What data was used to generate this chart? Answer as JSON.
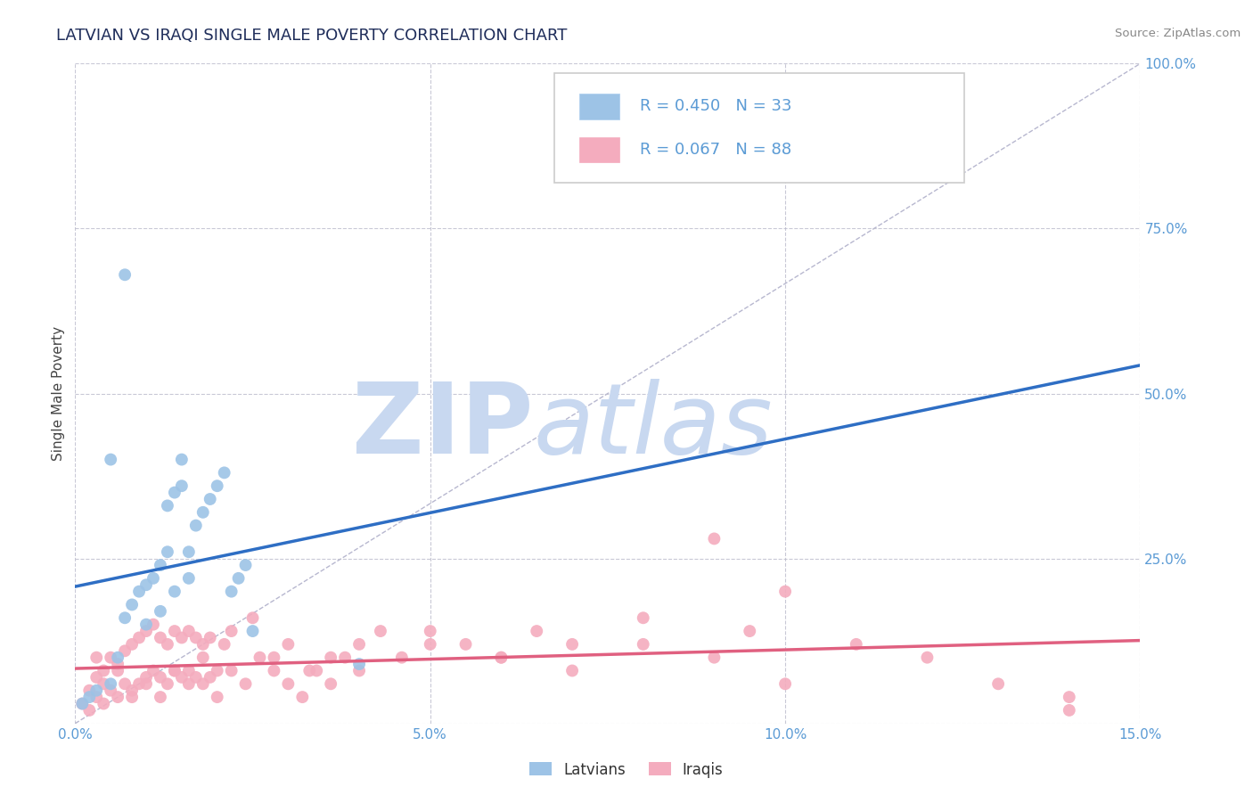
{
  "title": "LATVIAN VS IRAQI SINGLE MALE POVERTY CORRELATION CHART",
  "source_text": "Source: ZipAtlas.com",
  "ylabel": "Single Male Poverty",
  "x_min": 0.0,
  "x_max": 0.15,
  "y_min": 0.0,
  "y_max": 1.0,
  "x_ticks": [
    0.0,
    0.05,
    0.1,
    0.15
  ],
  "x_tick_labels": [
    "0.0%",
    "5.0%",
    "10.0%",
    "15.0%"
  ],
  "y_ticks": [
    0.0,
    0.25,
    0.5,
    0.75,
    1.0
  ],
  "y_tick_labels": [
    "",
    "25.0%",
    "50.0%",
    "75.0%",
    "100.0%"
  ],
  "latvian_color": "#9DC3E6",
  "iraqi_color": "#F4ACBE",
  "latvian_R": 0.45,
  "latvian_N": 33,
  "iraqi_R": 0.067,
  "iraqi_N": 88,
  "latvian_line_color": "#2E6EC4",
  "iraqi_line_color": "#E06080",
  "ref_line_color": "#9999BB",
  "watermark_color": "#C8D8F0",
  "watermark_zip": "ZIP",
  "watermark_atlas": "atlas",
  "title_fontsize": 13,
  "tick_fontsize": 11,
  "legend_fontsize": 13,
  "latvian_x": [
    0.002,
    0.003,
    0.005,
    0.006,
    0.007,
    0.008,
    0.009,
    0.01,
    0.011,
    0.012,
    0.013,
    0.013,
    0.014,
    0.015,
    0.015,
    0.016,
    0.017,
    0.018,
    0.019,
    0.02,
    0.021,
    0.022,
    0.023,
    0.024,
    0.025,
    0.01,
    0.012,
    0.014,
    0.016,
    0.005,
    0.007,
    0.04,
    0.001
  ],
  "latvian_y": [
    0.04,
    0.05,
    0.06,
    0.1,
    0.16,
    0.18,
    0.2,
    0.21,
    0.22,
    0.24,
    0.26,
    0.33,
    0.35,
    0.36,
    0.4,
    0.26,
    0.3,
    0.32,
    0.34,
    0.36,
    0.38,
    0.2,
    0.22,
    0.24,
    0.14,
    0.15,
    0.17,
    0.2,
    0.22,
    0.4,
    0.68,
    0.09,
    0.03
  ],
  "iraqi_x": [
    0.001,
    0.002,
    0.002,
    0.003,
    0.003,
    0.004,
    0.004,
    0.005,
    0.005,
    0.006,
    0.006,
    0.007,
    0.007,
    0.008,
    0.008,
    0.009,
    0.009,
    0.01,
    0.01,
    0.011,
    0.011,
    0.012,
    0.012,
    0.013,
    0.013,
    0.014,
    0.014,
    0.015,
    0.015,
    0.016,
    0.016,
    0.017,
    0.017,
    0.018,
    0.018,
    0.019,
    0.019,
    0.02,
    0.021,
    0.022,
    0.025,
    0.028,
    0.03,
    0.033,
    0.036,
    0.04,
    0.043,
    0.046,
    0.05,
    0.055,
    0.06,
    0.065,
    0.07,
    0.08,
    0.09,
    0.095,
    0.1,
    0.11,
    0.12,
    0.13,
    0.14,
    0.003,
    0.004,
    0.006,
    0.008,
    0.01,
    0.012,
    0.014,
    0.016,
    0.018,
    0.02,
    0.022,
    0.024,
    0.026,
    0.028,
    0.03,
    0.032,
    0.034,
    0.036,
    0.038,
    0.04,
    0.05,
    0.06,
    0.07,
    0.08,
    0.09,
    0.1,
    0.14
  ],
  "iraqi_y": [
    0.03,
    0.02,
    0.05,
    0.04,
    0.07,
    0.03,
    0.08,
    0.05,
    0.1,
    0.04,
    0.09,
    0.06,
    0.11,
    0.05,
    0.12,
    0.06,
    0.13,
    0.07,
    0.14,
    0.08,
    0.15,
    0.07,
    0.13,
    0.06,
    0.12,
    0.08,
    0.14,
    0.07,
    0.13,
    0.08,
    0.14,
    0.07,
    0.13,
    0.06,
    0.12,
    0.07,
    0.13,
    0.08,
    0.12,
    0.14,
    0.16,
    0.1,
    0.12,
    0.08,
    0.1,
    0.12,
    0.14,
    0.1,
    0.14,
    0.12,
    0.1,
    0.14,
    0.12,
    0.16,
    0.28,
    0.14,
    0.2,
    0.12,
    0.1,
    0.06,
    0.02,
    0.1,
    0.06,
    0.08,
    0.04,
    0.06,
    0.04,
    0.08,
    0.06,
    0.1,
    0.04,
    0.08,
    0.06,
    0.1,
    0.08,
    0.06,
    0.04,
    0.08,
    0.06,
    0.1,
    0.08,
    0.12,
    0.1,
    0.08,
    0.12,
    0.1,
    0.06,
    0.04
  ]
}
